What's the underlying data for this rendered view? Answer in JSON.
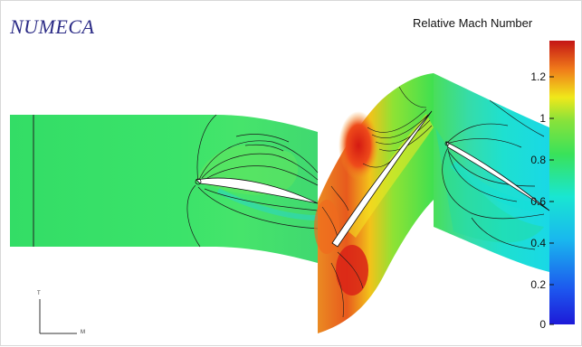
{
  "app": {
    "logo_text": "NUMECA"
  },
  "colorbar": {
    "title": "Relative Mach Number",
    "ticks": [
      "1.2",
      "1",
      "0.8",
      "0.6",
      "0.4",
      "0.2",
      "0"
    ],
    "min": 0,
    "max": 1.35
  },
  "triad": {
    "axis_t": "T",
    "axis_m": "M"
  },
  "colors": {
    "low": "#1d34e6",
    "cyan": "#19e0e0",
    "green": "#33dd55",
    "yellow": "#f0e81a",
    "red": "#e8231a",
    "high": "#b51515"
  }
}
